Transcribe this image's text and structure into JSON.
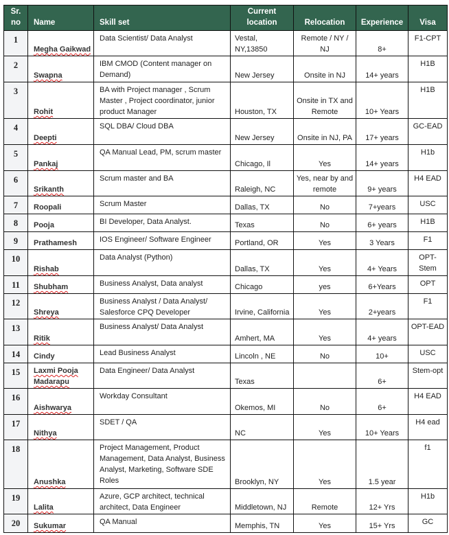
{
  "header": {
    "sr": "Sr. no",
    "name": "Name",
    "skill": "Skill set",
    "location": "Current location",
    "relocation": "Relocation",
    "experience": "Experience",
    "visa": "Visa"
  },
  "colors": {
    "header_bg": "#33654f",
    "sr_bg": "#f3f4f6"
  },
  "rows": [
    {
      "sr": "1",
      "name": "Megha Gaikwad",
      "skill": "Data Scientist/ Data  Analyst",
      "location": "Vestal, NY,13850",
      "relocation": "Remote / NY / NJ",
      "experience": "8+",
      "visa": "F1-CPT"
    },
    {
      "sr": "2",
      "name": "Swapna",
      "skill": "IBM CMOD (Content manager on Demand)",
      "location": "New Jersey",
      "relocation": "Onsite in NJ",
      "experience": "14+ years",
      "visa": "H1B"
    },
    {
      "sr": "3",
      "name": "Rohit",
      "skill": "BA with Project manager , Scrum Master , Project coordinator, junior product Manager",
      "location": "Houston, TX",
      "relocation": "Onsite in TX and Remote",
      "experience": "10+ Years",
      "visa": "H1B"
    },
    {
      "sr": "4",
      "name": "Deepti",
      "skill": "SQL DBA/ Cloud DBA",
      "location": "New Jersey",
      "relocation": "Onsite in NJ, PA",
      "experience": "17+ years",
      "visa": "GC-EAD"
    },
    {
      "sr": "5",
      "name": "Pankaj",
      "skill": "QA Manual  Lead, PM, scrum master",
      "location": "Chicago, Il",
      "relocation": "Yes",
      "experience": "14+ years",
      "visa": "H1b"
    },
    {
      "sr": "6",
      "name": "Srikanth",
      "skill": "Scrum master and BA",
      "location": "Raleigh, NC",
      "relocation": "Yes, near by and remote",
      "experience": "9+ years",
      "visa": "H4 EAD"
    },
    {
      "sr": "7",
      "name": "Roopali",
      "skill": "Scrum Master",
      "location": "Dallas, TX",
      "relocation": "No",
      "experience": "7+years",
      "visa": "USC"
    },
    {
      "sr": "8",
      "name": "Pooja",
      "skill": "BI Developer, Data Analyst.",
      "location": "Texas",
      "relocation": "No",
      "experience": "6+ years",
      "visa": "H1B"
    },
    {
      "sr": "9",
      "name": "Prathamesh",
      "skill": "IOS Engineer/ Software Engineer",
      "location": "Portland, OR",
      "relocation": "Yes",
      "experience": "3 Years",
      "visa": "F1"
    },
    {
      "sr": "10",
      "name": "Rishab",
      "skill": "Data Analyst (Python)",
      "location": "Dallas, TX",
      "relocation": "Yes",
      "experience": "4+ Years",
      "visa": "OPT-Stem"
    },
    {
      "sr": "11",
      "name": "Shubham",
      "skill": "Business Analyst, Data analyst",
      "location": "Chicago",
      "relocation": "yes",
      "experience": "6+Years",
      "visa": "OPT"
    },
    {
      "sr": "12",
      "name": "Shreya",
      "skill": "Business Analyst / Data Analyst/ Salesforce CPQ Developer",
      "location": "Irvine, California",
      "relocation": "Yes",
      "experience": "2+years",
      "visa": "F1"
    },
    {
      "sr": "13",
      "name": "Ritik",
      "skill": "Business Analyst/ Data Analyst",
      "location": "Amhert, MA",
      "relocation": "Yes",
      "experience": "4+ years",
      "visa": "OPT-EAD"
    },
    {
      "sr": "14",
      "name": "Cindy",
      "skill": "Lead Business Analyst",
      "location": "Lincoln , NE",
      "relocation": "No",
      "experience": "10+",
      "visa": "USC"
    },
    {
      "sr": "15",
      "name": "Laxmi Pooja Madarapu",
      "skill": "Data Engineer/ Data  Analyst",
      "location": "Texas",
      "relocation": "",
      "experience": "6+",
      "visa": "Stem-opt"
    },
    {
      "sr": "16",
      "name": "Aishwarya",
      "skill": "Workday Consultant",
      "location": "Okemos, MI",
      "relocation": "No",
      "experience": "6+",
      "visa": "H4 EAD"
    },
    {
      "sr": "17",
      "name": "Nithya",
      "skill": "SDET / QA",
      "location": "NC",
      "relocation": "Yes",
      "experience": "10+ Years",
      "visa": "H4 ead"
    },
    {
      "sr": "18",
      "name": "Anushka",
      "skill": "Project Management,  Product Management, Data  Analyst, Business Analyst, Marketing, Software SDE Roles",
      "location": "Brooklyn, NY",
      "relocation": "Yes",
      "experience": "1.5 year",
      "visa": "f1"
    },
    {
      "sr": "19",
      "name": "Lalita",
      "skill": "Azure, GCP architect, technical architect, Data  Engineer",
      "location": "Middletown, NJ",
      "relocation": "Remote",
      "experience": "12+ Yrs",
      "visa": "H1b"
    },
    {
      "sr": "20",
      "name": "Sukumar",
      "skill": "QA Manual",
      "location": "Memphis, TN",
      "relocation": "Yes",
      "experience": "15+ Yrs",
      "visa": "GC"
    }
  ]
}
